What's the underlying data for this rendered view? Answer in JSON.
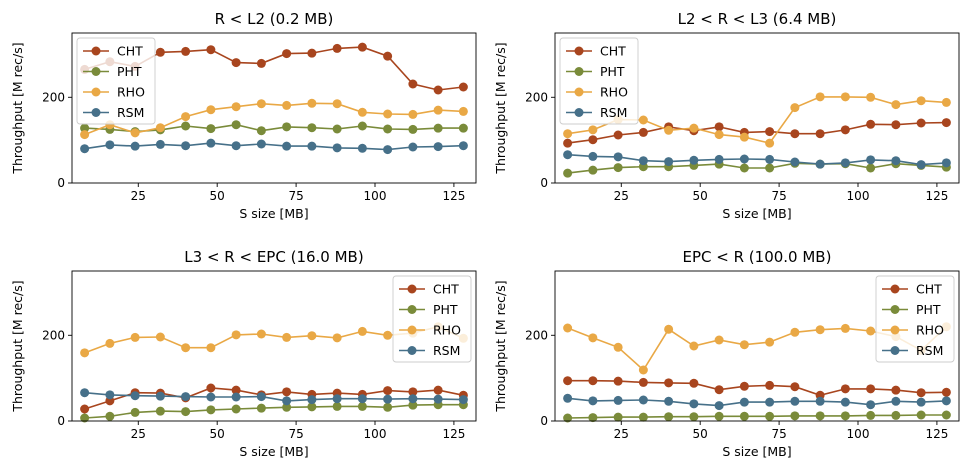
{
  "chart_data": [
    {
      "type": "line",
      "title": "R < L2 (0.2 MB)",
      "xlabel": "S size [MB]",
      "ylabel": "Throughput [M rec/s]",
      "xlim": [
        4,
        132
      ],
      "ylim": [
        0,
        350
      ],
      "xticks": [
        25,
        50,
        75,
        100,
        125
      ],
      "yticks": [
        0,
        200
      ],
      "legend": "upper left",
      "x": [
        8,
        16,
        24,
        32,
        40,
        48,
        56,
        64,
        72,
        80,
        88,
        96,
        104,
        112,
        120,
        128
      ],
      "series": [
        {
          "name": "CHT",
          "color": "#a8451e",
          "values": [
            265,
            283,
            272,
            305,
            307,
            311,
            281,
            279,
            302,
            303,
            314,
            317,
            296,
            231,
            217,
            224
          ]
        },
        {
          "name": "PHT",
          "color": "#7a8b3a",
          "values": [
            128,
            125,
            120,
            124,
            133,
            127,
            136,
            122,
            131,
            129,
            126,
            133,
            126,
            125,
            128,
            128
          ]
        },
        {
          "name": "RHO",
          "color": "#e9a845",
          "values": [
            113,
            136,
            117,
            129,
            155,
            171,
            178,
            185,
            181,
            186,
            185,
            165,
            161,
            160,
            170,
            167
          ]
        },
        {
          "name": "RSM",
          "color": "#467089",
          "values": [
            80,
            89,
            86,
            90,
            87,
            93,
            87,
            91,
            86,
            86,
            82,
            81,
            78,
            84,
            85,
            87
          ]
        }
      ]
    },
    {
      "type": "line",
      "title": "L2 < R < L3 (6.4 MB)",
      "xlabel": "S size [MB]",
      "ylabel": "Throughput [M rec/s]",
      "xlim": [
        4,
        132
      ],
      "ylim": [
        0,
        350
      ],
      "xticks": [
        25,
        50,
        75,
        100,
        125
      ],
      "yticks": [
        0,
        200
      ],
      "legend": "upper left",
      "x": [
        8,
        16,
        24,
        32,
        40,
        48,
        56,
        64,
        72,
        80,
        88,
        96,
        104,
        112,
        120,
        128
      ],
      "series": [
        {
          "name": "CHT",
          "color": "#a8451e",
          "values": [
            93,
            101,
            112,
            118,
            131,
            122,
            131,
            118,
            120,
            115,
            115,
            124,
            137,
            136,
            140,
            141
          ]
        },
        {
          "name": "PHT",
          "color": "#7a8b3a",
          "values": [
            23,
            30,
            36,
            38,
            38,
            41,
            44,
            35,
            35,
            46,
            44,
            45,
            35,
            45,
            41,
            37
          ]
        },
        {
          "name": "RHO",
          "color": "#e9a845",
          "values": [
            115,
            124,
            148,
            147,
            123,
            128,
            113,
            107,
            93,
            176,
            201,
            201,
            200,
            183,
            192,
            188
          ]
        },
        {
          "name": "RSM",
          "color": "#467089",
          "values": [
            66,
            62,
            61,
            52,
            50,
            53,
            55,
            56,
            55,
            49,
            44,
            47,
            54,
            52,
            43,
            47
          ]
        }
      ]
    },
    {
      "type": "line",
      "title": "L3 < R < EPC (16.0 MB)",
      "xlabel": "S size [MB]",
      "ylabel": "Throughput [M rec/s]",
      "xlim": [
        4,
        132
      ],
      "ylim": [
        0,
        350
      ],
      "xticks": [
        25,
        50,
        75,
        100,
        125
      ],
      "yticks": [
        0,
        200
      ],
      "legend": "upper right",
      "x": [
        8,
        16,
        24,
        32,
        40,
        48,
        56,
        64,
        72,
        80,
        88,
        96,
        104,
        112,
        120,
        128
      ],
      "series": [
        {
          "name": "CHT",
          "color": "#a8451e",
          "values": [
            28,
            47,
            66,
            65,
            54,
            77,
            72,
            61,
            68,
            62,
            65,
            62,
            71,
            68,
            72,
            60
          ]
        },
        {
          "name": "PHT",
          "color": "#7a8b3a",
          "values": [
            7,
            11,
            20,
            23,
            22,
            26,
            28,
            30,
            32,
            33,
            34,
            34,
            32,
            37,
            38,
            38
          ]
        },
        {
          "name": "RHO",
          "color": "#e9a845",
          "values": [
            159,
            181,
            195,
            196,
            171,
            171,
            201,
            203,
            195,
            199,
            194,
            209,
            200,
            205,
            220,
            193
          ]
        },
        {
          "name": "RSM",
          "color": "#467089",
          "values": [
            66,
            61,
            59,
            58,
            57,
            56,
            56,
            57,
            47,
            50,
            52,
            52,
            51,
            52,
            51,
            50
          ]
        }
      ]
    },
    {
      "type": "line",
      "title": "EPC < R (100.0 MB)",
      "xlabel": "S size [MB]",
      "ylabel": "Throughput [M rec/s]",
      "xlim": [
        4,
        132
      ],
      "ylim": [
        0,
        350
      ],
      "xticks": [
        25,
        50,
        75,
        100,
        125
      ],
      "yticks": [
        0,
        200
      ],
      "legend": "upper right",
      "x": [
        8,
        16,
        24,
        32,
        40,
        48,
        56,
        64,
        72,
        80,
        88,
        96,
        104,
        112,
        120,
        128
      ],
      "series": [
        {
          "name": "CHT",
          "color": "#a8451e",
          "values": [
            94,
            94,
            93,
            90,
            89,
            88,
            73,
            81,
            83,
            80,
            60,
            75,
            75,
            72,
            66,
            67
          ]
        },
        {
          "name": "PHT",
          "color": "#7a8b3a",
          "values": [
            7,
            8,
            9,
            9,
            10,
            10,
            11,
            11,
            11,
            12,
            12,
            12,
            13,
            13,
            14,
            14
          ]
        },
        {
          "name": "RHO",
          "color": "#e9a845",
          "values": [
            217,
            194,
            172,
            119,
            214,
            175,
            189,
            178,
            184,
            207,
            213,
            216,
            210,
            197,
            165,
            220
          ]
        },
        {
          "name": "RSM",
          "color": "#467089",
          "values": [
            53,
            47,
            48,
            49,
            46,
            40,
            36,
            44,
            44,
            46,
            46,
            44,
            38,
            46,
            44,
            47
          ]
        }
      ]
    }
  ]
}
